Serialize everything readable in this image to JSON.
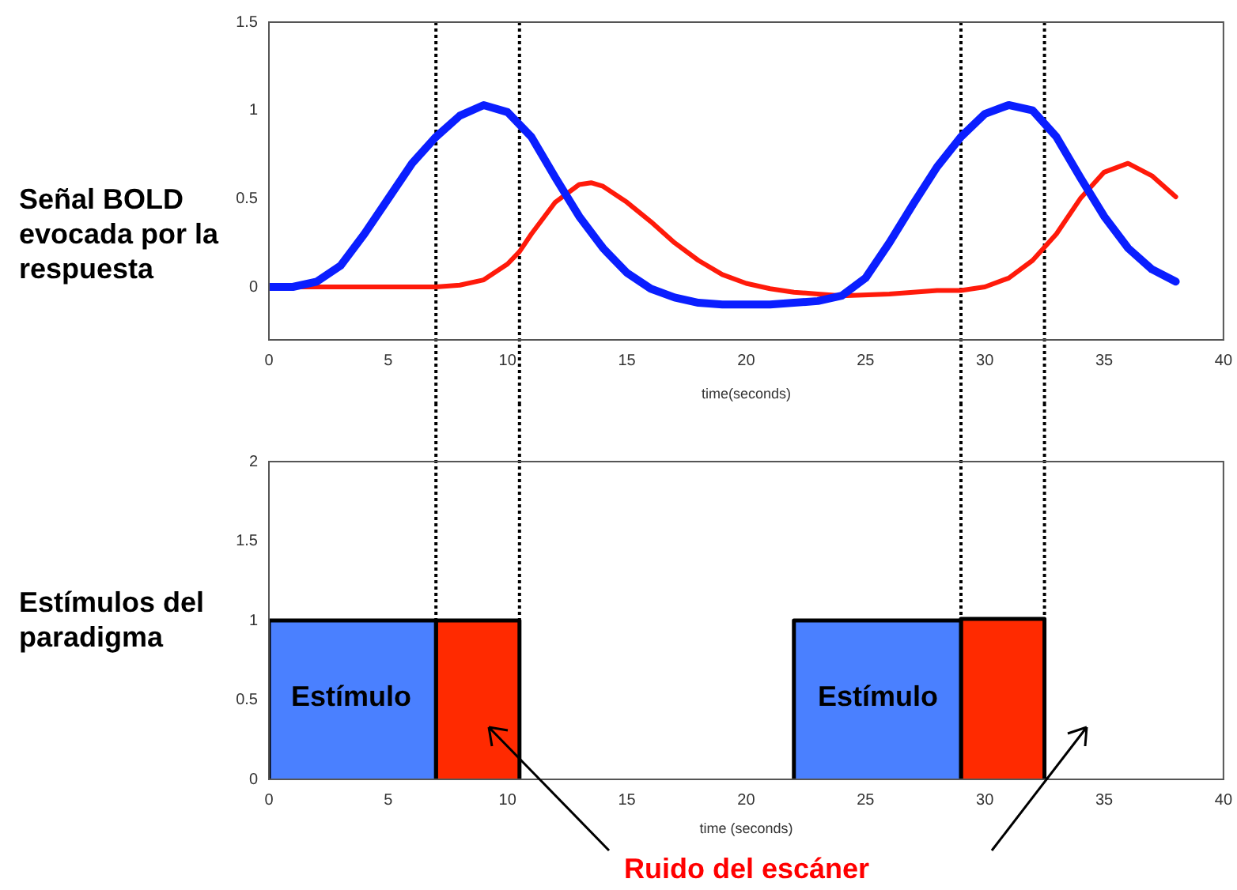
{
  "chart_data": [
    {
      "type": "line",
      "xlabel": "time(seconds)",
      "ylabel": "Señal BOLD evocada por la respuesta",
      "xlim": [
        0,
        40
      ],
      "ylim": [
        -0.3,
        1.5
      ],
      "xticks": [
        0,
        5,
        10,
        15,
        20,
        25,
        30,
        35,
        40
      ],
      "yticks": [
        0,
        0.5,
        1,
        1.5
      ],
      "series": [
        {
          "color": "#0a1eff",
          "x": [
            0,
            1,
            2,
            3,
            4,
            5,
            6,
            7,
            8,
            9,
            10,
            11,
            12,
            13,
            14,
            15,
            16,
            17,
            18,
            19,
            20,
            21,
            22,
            23,
            24,
            25,
            26,
            27,
            28,
            29,
            30,
            31,
            32,
            33,
            34,
            35,
            36,
            37,
            38
          ],
          "values": [
            0,
            0,
            0.03,
            0.12,
            0.3,
            0.5,
            0.7,
            0.85,
            0.97,
            1.03,
            0.99,
            0.85,
            0.62,
            0.4,
            0.22,
            0.08,
            -0.01,
            -0.06,
            -0.09,
            -0.1,
            -0.1,
            -0.1,
            -0.09,
            -0.08,
            -0.05,
            0.05,
            0.25,
            0.47,
            0.68,
            0.85,
            0.98,
            1.03,
            1,
            0.85,
            0.62,
            0.4,
            0.22,
            0.1,
            0.03
          ]
        },
        {
          "color": "#ff1a0a",
          "x": [
            0,
            2,
            4,
            6,
            7,
            8,
            9,
            10,
            10.5,
            11,
            12,
            13,
            13.5,
            14,
            15,
            16,
            17,
            18,
            19,
            20,
            21,
            22,
            23,
            24,
            26,
            28,
            29,
            30,
            31,
            32,
            33,
            34,
            35,
            36,
            37,
            38
          ],
          "values": [
            0,
            0,
            0,
            0,
            0,
            0.01,
            0.04,
            0.13,
            0.2,
            0.3,
            0.48,
            0.58,
            0.59,
            0.57,
            0.48,
            0.37,
            0.25,
            0.15,
            0.07,
            0.02,
            -0.01,
            -0.03,
            -0.04,
            -0.05,
            -0.04,
            -0.02,
            -0.02,
            0,
            0.05,
            0.15,
            0.3,
            0.5,
            0.65,
            0.7,
            0.63,
            0.51
          ]
        }
      ],
      "ref_lines": [
        {
          "axis": "x",
          "value": 7,
          "color": "#000000",
          "line_style": "dotted"
        },
        {
          "axis": "x",
          "value": 10.5,
          "color": "#000000",
          "line_style": "dotted"
        },
        {
          "axis": "x",
          "value": 29,
          "color": "#000000",
          "line_style": "dotted"
        },
        {
          "axis": "x",
          "value": 32.5,
          "color": "#000000",
          "line_style": "dotted"
        }
      ]
    },
    {
      "type": "area",
      "xlabel": "time (seconds)",
      "ylabel": "Estímulos del paradigma",
      "xlim": [
        0,
        40
      ],
      "ylim": [
        0,
        2
      ],
      "xticks": [
        0,
        5,
        10,
        15,
        20,
        25,
        30,
        35,
        40
      ],
      "yticks": [
        0,
        0.5,
        1,
        1.5,
        2
      ],
      "series": [
        {
          "color": "#4a80ff",
          "x": [
            0,
            0,
            7,
            7
          ],
          "values": [
            0,
            1,
            1,
            0
          ]
        },
        {
          "color": "#ff2a00",
          "x": [
            7,
            7,
            10.5,
            10.5
          ],
          "values": [
            0,
            1,
            1,
            0
          ]
        },
        {
          "color": "#4a80ff",
          "x": [
            22,
            22,
            29,
            29
          ],
          "values": [
            0,
            1,
            1,
            0
          ]
        },
        {
          "color": "#ff2a00",
          "x": [
            29,
            29,
            32.5,
            32.5
          ],
          "values": [
            0,
            1.01,
            1.01,
            0
          ]
        }
      ],
      "ref_lines": [
        {
          "axis": "x",
          "value": 7,
          "color": "#000000",
          "line_style": "dotted"
        },
        {
          "axis": "x",
          "value": 10.5,
          "color": "#000000",
          "line_style": "dotted"
        },
        {
          "axis": "x",
          "value": 29,
          "color": "#000000",
          "line_style": "dotted"
        },
        {
          "axis": "x",
          "value": 32.5,
          "color": "#000000",
          "line_style": "dotted"
        }
      ],
      "annotations": [
        "Estímulo",
        "Estímulo",
        "Ruido del escáner"
      ]
    }
  ]
}
